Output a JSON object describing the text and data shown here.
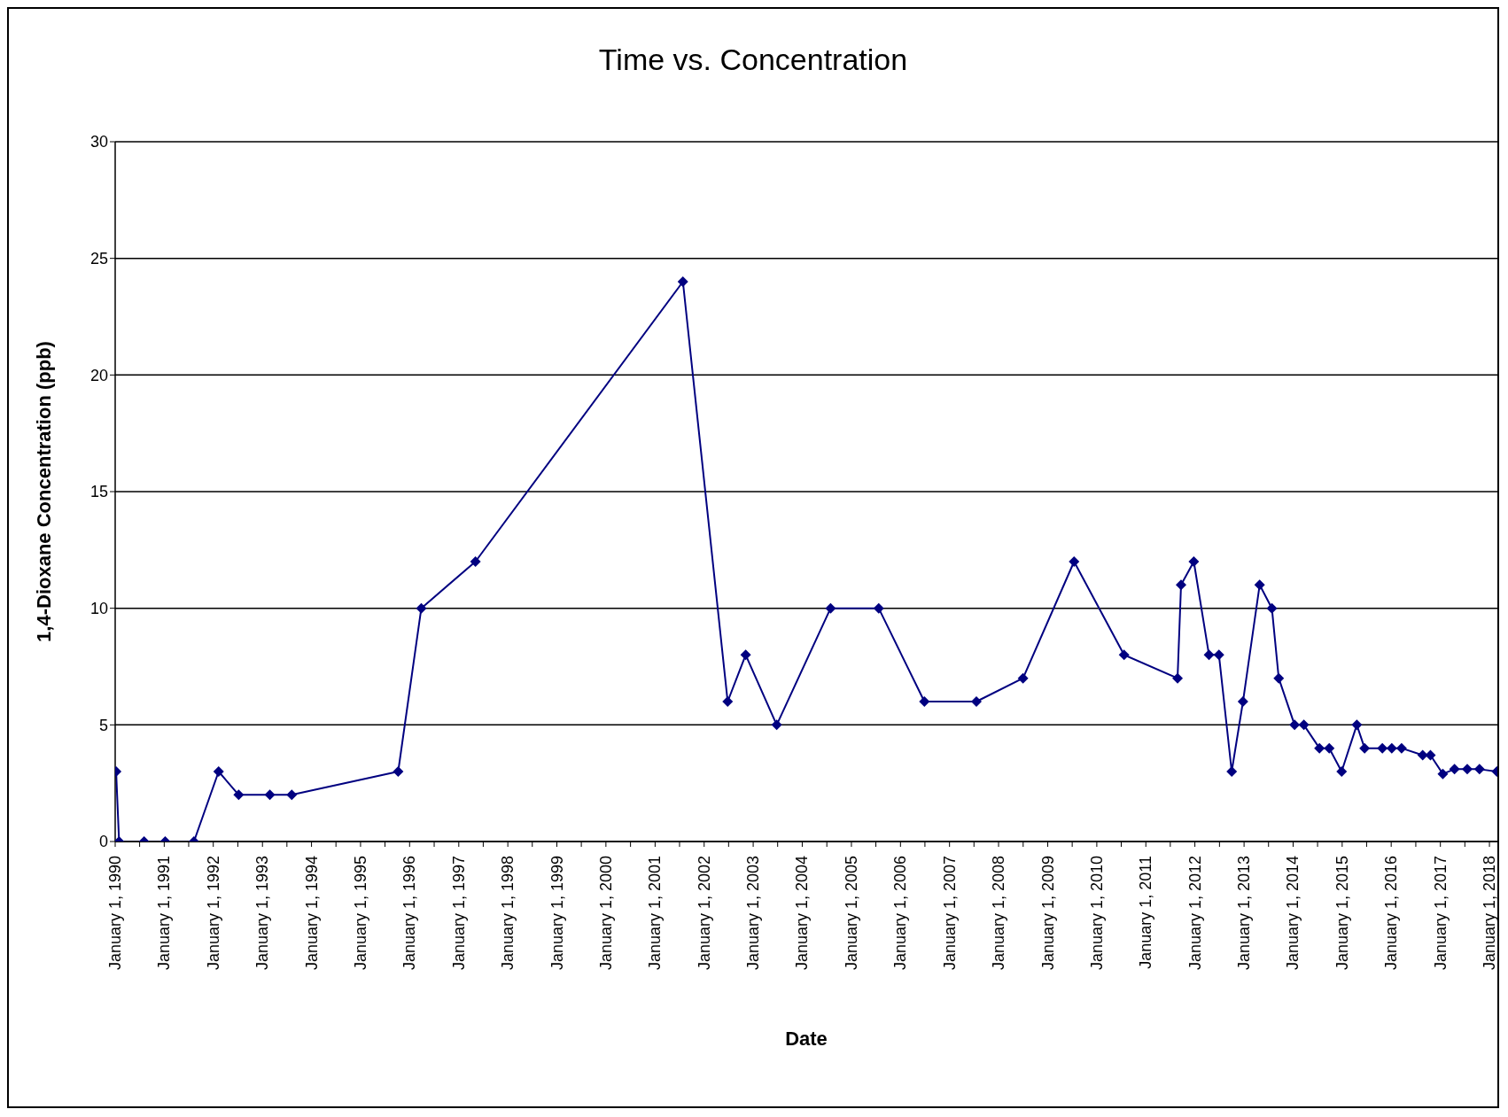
{
  "chart_data": {
    "type": "line",
    "title": "Time vs. Concentration",
    "xlabel": "Date",
    "ylabel": "1,4-Dioxane Concentration (ppb)",
    "x": [
      "1990-01-08",
      "1990-01-30",
      "1990-08-04",
      "1991-01-08",
      "1991-08-10",
      "1992-02-10",
      "1992-07-08",
      "1993-02-25",
      "1993-08-07",
      "1995-10-08",
      "1996-03-28",
      "1997-05-05",
      "2001-07-27",
      "2002-06-25",
      "2002-11-06",
      "2003-06-25",
      "2004-07-30",
      "2005-07-23",
      "2006-06-28",
      "2007-07-20",
      "2008-07-01",
      "2009-07-16",
      "2010-07-23",
      "2011-08-25",
      "2011-09-20",
      "2011-12-24",
      "2012-04-15",
      "2012-06-28",
      "2012-10-01",
      "2012-12-24",
      "2013-04-27",
      "2013-07-27",
      "2013-09-16",
      "2014-01-12",
      "2014-03-22",
      "2014-07-16",
      "2014-09-27",
      "2014-12-28",
      "2015-04-20",
      "2015-06-17",
      "2015-10-27",
      "2016-01-05",
      "2016-03-18",
      "2016-08-22",
      "2016-10-19",
      "2017-01-19",
      "2017-04-16",
      "2017-07-20",
      "2017-10-19",
      "2018-02-25"
    ],
    "series": [
      {
        "color": "#000080",
        "values": [
          3,
          0,
          0,
          0,
          0,
          3,
          2,
          2,
          2,
          3,
          10,
          12,
          24,
          6,
          8,
          5,
          10,
          10,
          6,
          6,
          7,
          12,
          8,
          7,
          11,
          12,
          8,
          8,
          3,
          6,
          11,
          10,
          7,
          5,
          5,
          4,
          4,
          3,
          5,
          4,
          4,
          4,
          4,
          3.7,
          3.7,
          2.9,
          3.1,
          3.1,
          3.1,
          3
        ]
      }
    ],
    "xlim": [
      "1990-01-01",
      "2018-03-01"
    ],
    "xticks": [
      {
        "value": "1990-01-01",
        "label": "January 1, 1990"
      },
      {
        "value": "1990-07-02",
        "label": null
      },
      {
        "value": "1991-01-01",
        "label": "January 1, 1991"
      },
      {
        "value": "1991-07-02",
        "label": null
      },
      {
        "value": "1992-01-01",
        "label": "January 1, 1992"
      },
      {
        "value": "1992-07-02",
        "label": null
      },
      {
        "value": "1993-01-01",
        "label": "January 1, 1993"
      },
      {
        "value": "1993-07-02",
        "label": null
      },
      {
        "value": "1994-01-01",
        "label": "January 1, 1994"
      },
      {
        "value": "1994-07-02",
        "label": null
      },
      {
        "value": "1995-01-01",
        "label": "January 1, 1995"
      },
      {
        "value": "1995-07-02",
        "label": null
      },
      {
        "value": "1996-01-01",
        "label": "January 1, 1996"
      },
      {
        "value": "1996-07-02",
        "label": null
      },
      {
        "value": "1997-01-01",
        "label": "January 1, 1997"
      },
      {
        "value": "1997-07-02",
        "label": null
      },
      {
        "value": "1998-01-01",
        "label": "January 1, 1998"
      },
      {
        "value": "1998-07-02",
        "label": null
      },
      {
        "value": "1999-01-01",
        "label": "January 1, 1999"
      },
      {
        "value": "1999-07-02",
        "label": null
      },
      {
        "value": "2000-01-01",
        "label": "January 1, 2000"
      },
      {
        "value": "2000-07-02",
        "label": null
      },
      {
        "value": "2001-01-01",
        "label": "January 1, 2001"
      },
      {
        "value": "2001-07-02",
        "label": null
      },
      {
        "value": "2002-01-01",
        "label": "January 1, 2002"
      },
      {
        "value": "2002-07-02",
        "label": null
      },
      {
        "value": "2003-01-01",
        "label": "January 1, 2003"
      },
      {
        "value": "2003-07-02",
        "label": null
      },
      {
        "value": "2004-01-01",
        "label": "January 1, 2004"
      },
      {
        "value": "2004-07-02",
        "label": null
      },
      {
        "value": "2005-01-01",
        "label": "January 1, 2005"
      },
      {
        "value": "2005-07-02",
        "label": null
      },
      {
        "value": "2006-01-01",
        "label": "January 1, 2006"
      },
      {
        "value": "2006-07-02",
        "label": null
      },
      {
        "value": "2007-01-01",
        "label": "January 1, 2007"
      },
      {
        "value": "2007-07-02",
        "label": null
      },
      {
        "value": "2008-01-01",
        "label": "January 1, 2008"
      },
      {
        "value": "2008-07-02",
        "label": null
      },
      {
        "value": "2009-01-01",
        "label": "January 1, 2009"
      },
      {
        "value": "2009-07-02",
        "label": null
      },
      {
        "value": "2010-01-01",
        "label": "January 1, 2010"
      },
      {
        "value": "2010-07-02",
        "label": null
      },
      {
        "value": "2011-01-01",
        "label": "January 1, 2011"
      },
      {
        "value": "2011-07-02",
        "label": null
      },
      {
        "value": "2012-01-01",
        "label": "January 1, 2012"
      },
      {
        "value": "2012-07-02",
        "label": null
      },
      {
        "value": "2013-01-01",
        "label": "January 1, 2013"
      },
      {
        "value": "2013-07-02",
        "label": null
      },
      {
        "value": "2014-01-01",
        "label": "January 1, 2014"
      },
      {
        "value": "2014-07-02",
        "label": null
      },
      {
        "value": "2015-01-01",
        "label": "January 1, 2015"
      },
      {
        "value": "2015-07-02",
        "label": null
      },
      {
        "value": "2016-01-01",
        "label": "January 1, 2016"
      },
      {
        "value": "2016-07-02",
        "label": null
      },
      {
        "value": "2017-01-01",
        "label": "January 1, 2017"
      },
      {
        "value": "2017-07-02",
        "label": null
      },
      {
        "value": "2018-01-01",
        "label": "January 1, 2018"
      }
    ],
    "ylim": [
      0,
      30
    ],
    "yticks": [
      0,
      5,
      10,
      15,
      20,
      25,
      30
    ],
    "grid": "y",
    "marker": "diamond",
    "line_style": "solid"
  }
}
